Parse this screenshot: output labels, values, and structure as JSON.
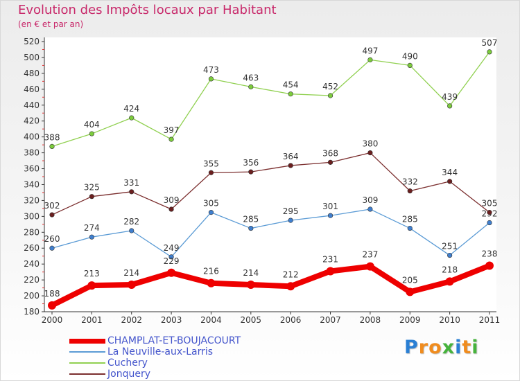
{
  "title": "Evolution des Impôts locaux par Habitant",
  "subtitle": "(en € et par an)",
  "logo": {
    "text": "Proxiti",
    "letter_colors": [
      "#2a7fd4",
      "#f08c1e",
      "#f08c1e",
      "#46b33c",
      "#2a7fd4",
      "#f08c1e",
      "#46b33c"
    ]
  },
  "chart_data": {
    "type": "line",
    "x": [
      "2000",
      "2001",
      "2002",
      "2003",
      "2004",
      "2005",
      "2006",
      "2007",
      "2008",
      "2009",
      "2010",
      "2011"
    ],
    "ylim": [
      180,
      520
    ],
    "yticks": [
      180,
      200,
      220,
      240,
      260,
      280,
      300,
      320,
      340,
      360,
      380,
      400,
      420,
      440,
      460,
      480,
      500,
      520
    ],
    "grid": false,
    "legend_position": "bottom-left",
    "series": [
      {
        "name": "CHAMPLAT-ET-BOUJACOURT",
        "color": "#ee0000",
        "marker_color": "#ee0000",
        "emphasis": "thick",
        "values": [
          188,
          213,
          214,
          229,
          216,
          214,
          212,
          231,
          237,
          205,
          218,
          238
        ]
      },
      {
        "name": "La Neuville-aux-Larris",
        "color": "#5b9bd5",
        "marker_color": "#3f7fcf",
        "emphasis": "normal",
        "values": [
          260,
          274,
          282,
          249,
          305,
          285,
          295,
          301,
          309,
          285,
          251,
          292
        ]
      },
      {
        "name": "Cuchery",
        "color": "#90d050",
        "marker_color": "#7ccc3c",
        "emphasis": "normal",
        "values": [
          388,
          404,
          424,
          397,
          473,
          463,
          454,
          452,
          497,
          490,
          439,
          507
        ]
      },
      {
        "name": "Jonquery",
        "color": "#7b2e2e",
        "marker_color": "#6b1f1f",
        "emphasis": "normal",
        "values": [
          302,
          325,
          331,
          309,
          355,
          356,
          364,
          368,
          380,
          332,
          344,
          305
        ]
      }
    ]
  }
}
